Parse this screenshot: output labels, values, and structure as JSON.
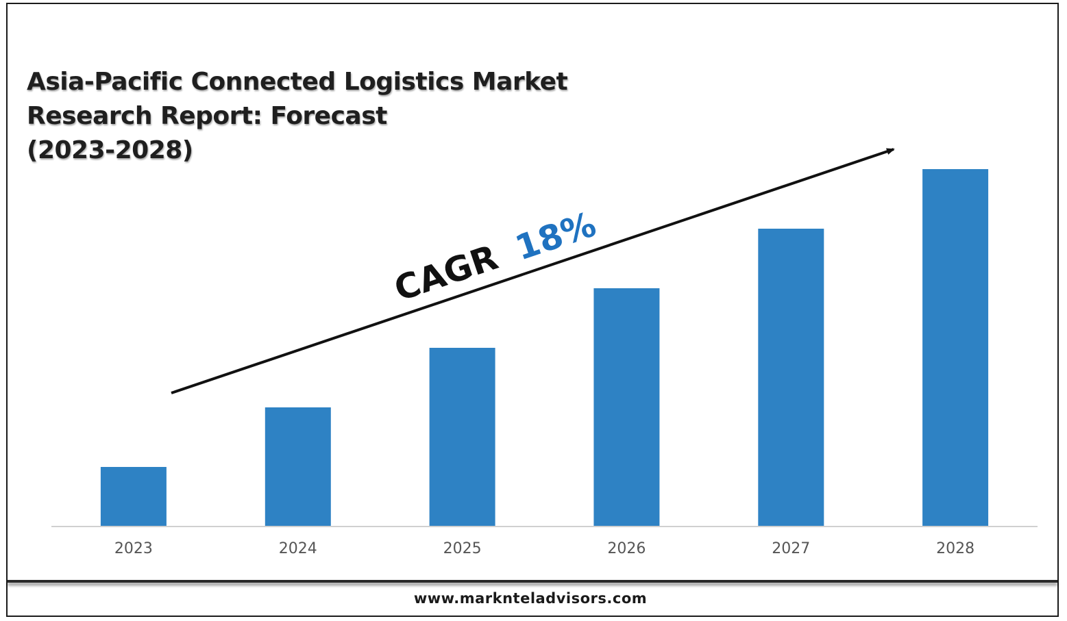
{
  "title_lines": [
    "Asia-Pacific Connected Logistics Market",
    "Research Report: Forecast",
    "(2023-2028)"
  ],
  "cagr": {
    "label": "CAGR",
    "value": "18%",
    "label_color": "#111111",
    "value_color": "#1f72c0"
  },
  "footer": {
    "url": "www.marknteladvisors.com"
  },
  "colors": {
    "bar": "#2e82c4",
    "axis": "#d0d0d0",
    "tick_label": "#555555",
    "arrow": "#111111"
  },
  "chart_data": {
    "type": "bar",
    "categories": [
      "2023",
      "2024",
      "2025",
      "2026",
      "2027",
      "2028"
    ],
    "values": [
      1.0,
      2.0,
      3.0,
      4.0,
      5.0,
      6.0
    ],
    "title": "Asia-Pacific Connected Logistics Market Research Report: Forecast (2023-2028)",
    "xlabel": "",
    "ylabel": "",
    "ylim": [
      0,
      6.0
    ],
    "grid": false,
    "legend": "none",
    "annotations": [
      {
        "text": "CAGR 18%",
        "kind": "trend-arrow",
        "direction": "rising"
      }
    ]
  }
}
